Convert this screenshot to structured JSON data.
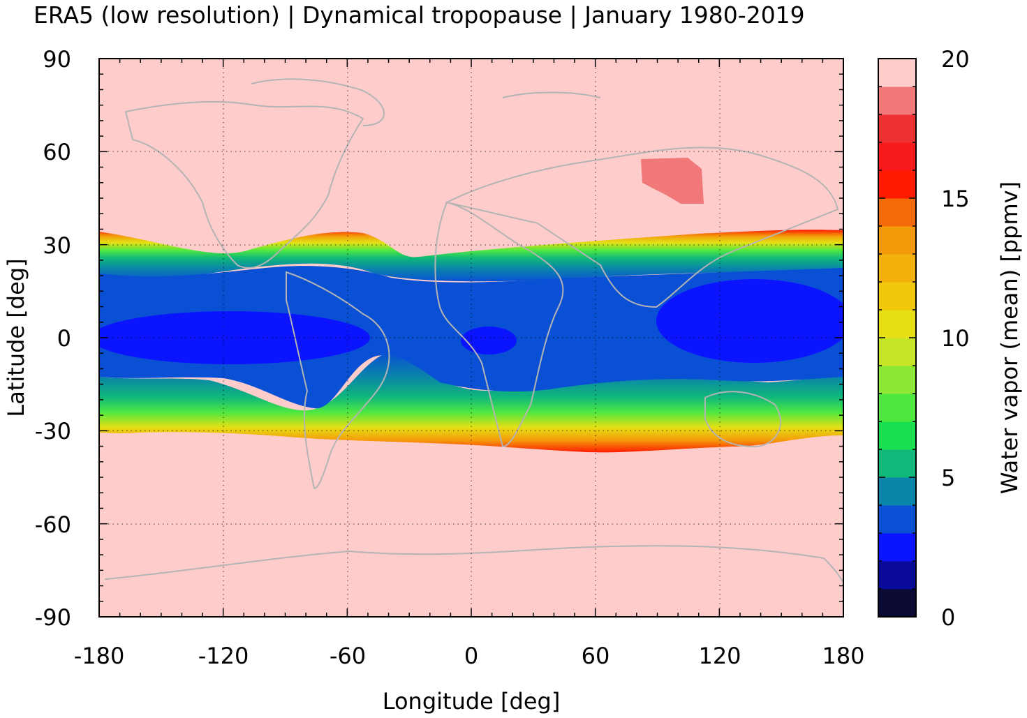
{
  "title": "ERA5 (low resolution) | Dynamical tropopause | January 1980-2019",
  "map": {
    "xlabel": "Longitude [deg]",
    "ylabel": "Latitude [deg]",
    "xlim": [
      -180,
      180
    ],
    "ylim": [
      -90,
      90
    ],
    "xticks": [
      "-180",
      "-120",
      "-60",
      "0",
      "60",
      "120",
      "180"
    ],
    "yticks": [
      "90",
      "60",
      "30",
      "0",
      "-30",
      "-60",
      "-90"
    ],
    "grid": "dotted",
    "coastline_color": "#b4b4b4",
    "background_value_color": "#ffcccc"
  },
  "colorbar": {
    "label": "Water vapor (mean) [ppmv]",
    "range": [
      0,
      20
    ],
    "ticks": [
      "0",
      "5",
      "10",
      "15",
      "20"
    ],
    "colors": [
      "#0a0a32",
      "#0a0a9a",
      "#0a14ff",
      "#0a50d4",
      "#0a86a8",
      "#10b87a",
      "#18e050",
      "#50e840",
      "#8ce832",
      "#c8e628",
      "#e6e014",
      "#f0c80a",
      "#f4b00a",
      "#f49a0a",
      "#f46a0a",
      "#ff1a00",
      "#f81a1a",
      "#ee3030",
      "#f07878",
      "#ffcccc"
    ]
  }
}
